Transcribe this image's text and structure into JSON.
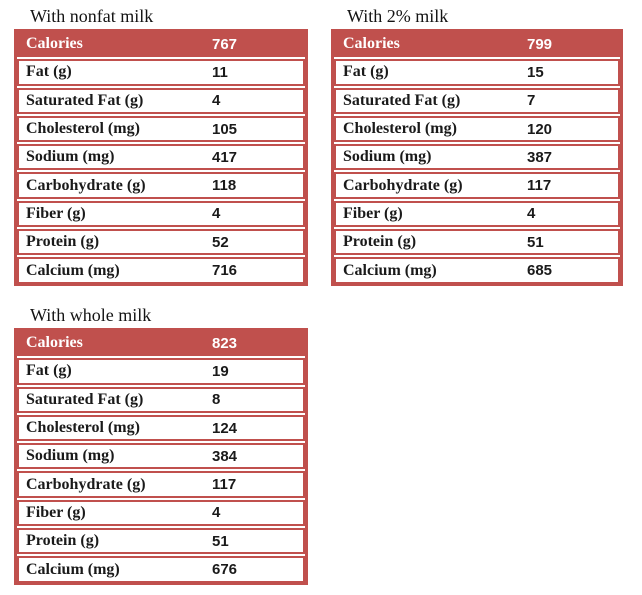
{
  "accent_color": "#c0504d",
  "page_background": "#ffffff",
  "tables": [
    {
      "title": "With nonfat milk",
      "rows": [
        {
          "label": "Calories",
          "value": "767"
        },
        {
          "label": "Fat (g)",
          "value": "11"
        },
        {
          "label": "Saturated Fat (g)",
          "value": "4"
        },
        {
          "label": "Cholesterol (mg)",
          "value": "105"
        },
        {
          "label": "Sodium (mg)",
          "value": "417"
        },
        {
          "label": "Carbohydrate (g)",
          "value": "118"
        },
        {
          "label": "Fiber (g)",
          "value": "4"
        },
        {
          "label": "Protein (g)",
          "value": "52"
        },
        {
          "label": "Calcium (mg)",
          "value": "716"
        }
      ]
    },
    {
      "title": "With 2% milk",
      "rows": [
        {
          "label": "Calories",
          "value": "799"
        },
        {
          "label": "Fat (g)",
          "value": "15"
        },
        {
          "label": "Saturated Fat (g)",
          "value": "7"
        },
        {
          "label": "Cholesterol (mg)",
          "value": "120"
        },
        {
          "label": "Sodium (mg)",
          "value": "387"
        },
        {
          "label": "Carbohydrate (g)",
          "value": "117"
        },
        {
          "label": "Fiber (g)",
          "value": "4"
        },
        {
          "label": "Protein (g)",
          "value": "51"
        },
        {
          "label": "Calcium (mg)",
          "value": "685"
        }
      ]
    },
    {
      "title": "With whole milk",
      "rows": [
        {
          "label": "Calories",
          "value": "823"
        },
        {
          "label": "Fat (g)",
          "value": "19"
        },
        {
          "label": "Saturated Fat (g)",
          "value": "8"
        },
        {
          "label": "Cholesterol (mg)",
          "value": "124"
        },
        {
          "label": "Sodium (mg)",
          "value": "384"
        },
        {
          "label": "Carbohydrate (g)",
          "value": "117"
        },
        {
          "label": "Fiber (g)",
          "value": "4"
        },
        {
          "label": "Protein (g)",
          "value": "51"
        },
        {
          "label": "Calcium (mg)",
          "value": "676"
        }
      ]
    }
  ]
}
